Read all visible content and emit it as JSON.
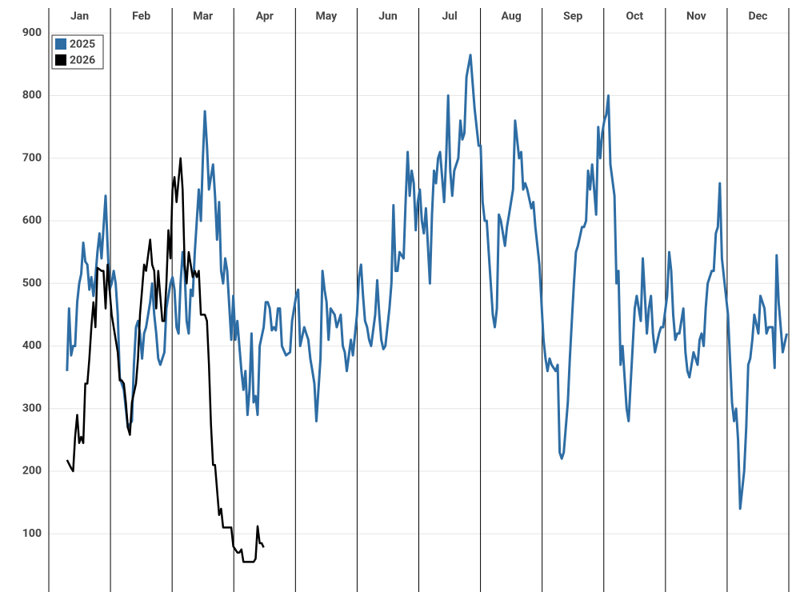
{
  "chart_data": {
    "type": "line",
    "categories": [
      "Jan",
      "Feb",
      "Mar",
      "Apr",
      "May",
      "Jun",
      "Jul",
      "Aug",
      "Sep",
      "Oct",
      "Nov",
      "Dec"
    ],
    "xlim": [
      0,
      365
    ],
    "ylim": [
      7,
      940
    ],
    "yticks": [
      100,
      200,
      300,
      400,
      500,
      600,
      700,
      800,
      900
    ],
    "grid": true,
    "legend": "upper left",
    "series": [
      {
        "name": "2025",
        "color": "#2e6da4",
        "x": [
          9,
          10,
          11,
          12,
          13,
          14,
          15,
          16,
          17,
          18,
          19,
          20,
          21,
          22,
          23,
          24,
          25,
          26,
          28,
          29,
          30,
          31,
          32,
          33,
          34,
          35,
          36,
          37,
          38,
          39,
          41,
          42,
          43,
          44,
          45,
          46,
          47,
          48,
          50,
          51,
          52,
          53,
          54,
          55,
          57,
          58,
          59,
          60,
          61,
          62,
          63,
          64,
          65,
          66,
          67,
          68,
          69,
          70,
          71,
          72,
          73,
          74,
          75,
          76,
          77,
          78,
          79,
          80,
          81,
          82,
          83,
          84,
          85,
          86,
          87,
          88,
          90,
          91,
          92,
          93,
          94,
          95,
          96,
          97,
          98,
          99,
          100,
          101,
          102,
          103,
          104,
          106,
          107,
          108,
          109,
          110,
          111,
          112,
          113,
          114,
          115,
          117,
          119,
          120,
          121,
          122,
          123,
          124,
          126,
          127,
          128,
          129,
          130,
          131,
          132,
          134,
          135,
          136,
          137,
          138,
          139,
          141,
          142,
          143,
          144,
          145,
          146,
          147,
          149,
          150,
          152,
          153,
          154,
          155,
          156,
          157,
          158,
          159,
          161,
          162,
          163,
          164,
          165,
          166,
          168,
          169,
          170,
          171,
          172,
          173,
          175,
          176,
          177,
          178,
          179,
          180,
          181,
          182,
          183,
          184,
          185,
          186,
          188,
          189,
          190,
          191,
          192,
          193,
          195,
          196,
          197,
          198,
          199,
          200,
          202,
          203,
          204,
          205,
          206,
          208,
          210,
          212,
          213,
          214,
          215,
          216,
          217,
          219,
          220,
          221,
          222,
          223,
          225,
          226,
          227,
          228,
          229,
          230,
          232,
          233,
          234,
          235,
          236,
          238,
          239,
          240,
          242,
          243,
          244,
          245,
          246,
          247,
          248,
          250,
          251,
          252,
          253,
          254,
          256,
          257,
          258,
          259,
          260,
          261,
          263,
          264,
          265,
          266,
          267,
          268,
          270,
          271,
          272,
          273,
          274,
          275,
          276,
          277,
          279,
          280,
          281,
          282,
          283,
          285,
          286,
          287,
          288,
          289,
          290,
          292,
          293,
          294,
          295,
          296,
          297,
          298,
          299,
          301,
          302,
          303,
          305,
          306,
          307,
          308,
          309,
          310,
          311,
          313,
          314,
          315,
          316,
          317,
          318,
          320,
          321,
          322,
          323,
          324,
          325,
          327,
          328,
          329,
          330,
          331,
          332,
          333,
          335,
          336,
          337,
          338,
          339,
          340,
          341,
          343,
          344,
          345,
          346,
          347,
          348,
          350,
          351,
          352,
          353,
          354,
          355,
          357,
          358,
          359,
          360,
          361,
          362,
          364
        ],
        "values": [
          360,
          460,
          385,
          400,
          400,
          470,
          500,
          515,
          565,
          535,
          530,
          490,
          510,
          480,
          510,
          550,
          580,
          540,
          640,
          560,
          490,
          500,
          520,
          500,
          450,
          350,
          340,
          330,
          300,
          270,
          280,
          370,
          430,
          440,
          420,
          380,
          420,
          430,
          470,
          500,
          450,
          420,
          380,
          370,
          390,
          460,
          480,
          500,
          510,
          490,
          430,
          420,
          500,
          550,
          520,
          440,
          420,
          490,
          480,
          550,
          600,
          650,
          600,
          700,
          775,
          720,
          650,
          670,
          690,
          640,
          570,
          630,
          520,
          500,
          540,
          520,
          410,
          480,
          410,
          440,
          400,
          360,
          330,
          360,
          290,
          330,
          420,
          310,
          320,
          290,
          400,
          430,
          470,
          470,
          460,
          425,
          430,
          425,
          460,
          460,
          400,
          385,
          390,
          440,
          460,
          480,
          490,
          400,
          430,
          420,
          410,
          380,
          360,
          340,
          280,
          380,
          520,
          490,
          470,
          410,
          460,
          450,
          430,
          440,
          450,
          400,
          390,
          360,
          410,
          385,
          450,
          510,
          530,
          480,
          440,
          430,
          410,
          400,
          450,
          505,
          450,
          410,
          395,
          400,
          460,
          500,
          625,
          520,
          520,
          550,
          540,
          630,
          710,
          640,
          680,
          660,
          585,
          630,
          650,
          600,
          580,
          620,
          500,
          610,
          680,
          660,
          700,
          710,
          630,
          700,
          800,
          680,
          640,
          680,
          700,
          760,
          730,
          740,
          830,
          865,
          780,
          720,
          720,
          630,
          600,
          600,
          550,
          450,
          430,
          460,
          610,
          600,
          560,
          590,
          610,
          630,
          650,
          760,
          700,
          710,
          650,
          660,
          650,
          620,
          630,
          590,
          530,
          470,
          410,
          380,
          360,
          380,
          370,
          360,
          370,
          230,
          220,
          230,
          310,
          380,
          440,
          500,
          550,
          560,
          590,
          590,
          600,
          680,
          650,
          690,
          610,
          750,
          700,
          740,
          760,
          770,
          800,
          690,
          640,
          500,
          520,
          370,
          400,
          300,
          280,
          340,
          400,
          460,
          480,
          440,
          540,
          480,
          420,
          460,
          480,
          420,
          390,
          420,
          430,
          430,
          480,
          550,
          520,
          450,
          410,
          420,
          420,
          460,
          390,
          360,
          350,
          370,
          390,
          370,
          410,
          420,
          400,
          460,
          500,
          520,
          520,
          580,
          590,
          660,
          540,
          510,
          450,
          380,
          310,
          280,
          300,
          250,
          140,
          200,
          270,
          370,
          380,
          410,
          450,
          420,
          480,
          470,
          460,
          420,
          430,
          430,
          365,
          545,
          470,
          430,
          390,
          420
        ]
      },
      {
        "name": "2026",
        "color": "#000000",
        "x": [
          9,
          11,
          12,
          13,
          14,
          15,
          16,
          17,
          18,
          19,
          20,
          21,
          22,
          23,
          24,
          26,
          27,
          28,
          29,
          30,
          31,
          32,
          34,
          35,
          36,
          37,
          38,
          39,
          40,
          41,
          43,
          44,
          45,
          46,
          47,
          48,
          50,
          51,
          52,
          53,
          54,
          56,
          57,
          58,
          59,
          60,
          61,
          62,
          63,
          65,
          66,
          67,
          68,
          69,
          71,
          72,
          73,
          74,
          75,
          77,
          78,
          79,
          80,
          81,
          82,
          84,
          85,
          86,
          87,
          89,
          90,
          91,
          93,
          94,
          95,
          96,
          97,
          99,
          100,
          101,
          102,
          103,
          104,
          105,
          106
        ],
        "values": [
          218,
          205,
          200,
          255,
          290,
          245,
          255,
          245,
          340,
          340,
          380,
          430,
          470,
          430,
          525,
          520,
          520,
          460,
          530,
          490,
          450,
          430,
          390,
          345,
          345,
          340,
          310,
          270,
          258,
          310,
          340,
          380,
          450,
          490,
          530,
          520,
          570,
          530,
          520,
          460,
          520,
          440,
          440,
          500,
          585,
          540,
          650,
          670,
          630,
          700,
          650,
          530,
          500,
          550,
          510,
          520,
          510,
          520,
          450,
          450,
          440,
          370,
          275,
          210,
          210,
          130,
          140,
          110,
          110,
          110,
          110,
          80,
          70,
          70,
          75,
          55,
          55,
          55,
          55,
          55,
          60,
          112,
          85,
          85,
          78
        ]
      }
    ]
  }
}
